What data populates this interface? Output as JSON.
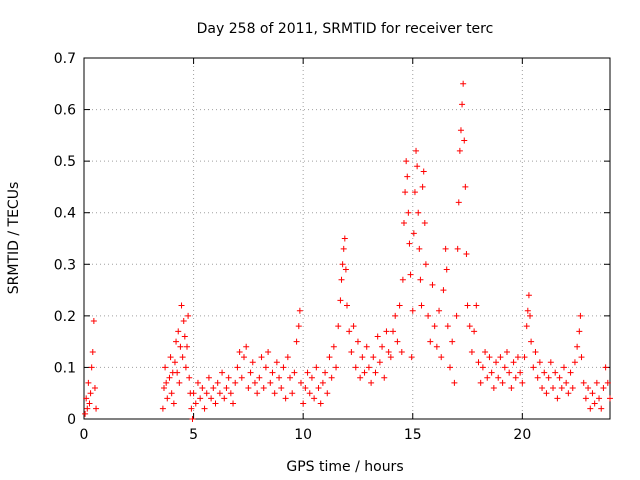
{
  "chart_data": {
    "type": "scatter",
    "title": "Day 258 of 2011, SRMTID for receiver terc",
    "xlabel": "GPS time / hours",
    "ylabel": "SRMTID / TECUs",
    "xlim": [
      0,
      24
    ],
    "ylim": [
      0,
      0.7
    ],
    "x_ticks": [
      0,
      5,
      10,
      15,
      20
    ],
    "x_tick_labels": [
      "0",
      "5",
      "10",
      "15",
      "20"
    ],
    "y_ticks": [
      0,
      0.1,
      0.2,
      0.3,
      0.4,
      0.5,
      0.6,
      0.7
    ],
    "y_tick_labels": [
      "0",
      "0.1",
      "0.2",
      "0.3",
      "0.4",
      "0.5",
      "0.6",
      "0.7"
    ],
    "grid": true,
    "marker": "+",
    "color": "#ff0000",
    "series": [
      {
        "name": "SRMTID",
        "points": [
          [
            0.05,
            0.01
          ],
          [
            0.1,
            0.04
          ],
          [
            0.15,
            0.02
          ],
          [
            0.2,
            0.07
          ],
          [
            0.25,
            0.03
          ],
          [
            0.3,
            0.05
          ],
          [
            0.35,
            0.1
          ],
          [
            0.4,
            0.13
          ],
          [
            0.45,
            0.19
          ],
          [
            0.5,
            0.06
          ],
          [
            0.55,
            0.02
          ],
          [
            3.6,
            0.02
          ],
          [
            3.65,
            0.06
          ],
          [
            3.7,
            0.1
          ],
          [
            3.75,
            0.07
          ],
          [
            3.8,
            0.04
          ],
          [
            3.9,
            0.08
          ],
          [
            3.95,
            0.12
          ],
          [
            4.0,
            0.05
          ],
          [
            4.05,
            0.09
          ],
          [
            4.1,
            0.03
          ],
          [
            4.15,
            0.11
          ],
          [
            4.2,
            0.15
          ],
          [
            4.25,
            0.09
          ],
          [
            4.3,
            0.17
          ],
          [
            4.35,
            0.07
          ],
          [
            4.4,
            0.14
          ],
          [
            4.45,
            0.22
          ],
          [
            4.5,
            0.12
          ],
          [
            4.55,
            0.19
          ],
          [
            4.6,
            0.16
          ],
          [
            4.65,
            0.1
          ],
          [
            4.7,
            0.14
          ],
          [
            4.75,
            0.2
          ],
          [
            4.8,
            0.08
          ],
          [
            4.85,
            0.05
          ],
          [
            4.9,
            0.02
          ],
          [
            4.95,
            0.0
          ],
          [
            5.0,
            0.05
          ],
          [
            5.1,
            0.03
          ],
          [
            5.2,
            0.07
          ],
          [
            5.3,
            0.04
          ],
          [
            5.4,
            0.06
          ],
          [
            5.5,
            0.02
          ],
          [
            5.6,
            0.05
          ],
          [
            5.7,
            0.08
          ],
          [
            5.8,
            0.04
          ],
          [
            5.9,
            0.06
          ],
          [
            6.0,
            0.03
          ],
          [
            6.1,
            0.07
          ],
          [
            6.2,
            0.05
          ],
          [
            6.3,
            0.09
          ],
          [
            6.4,
            0.04
          ],
          [
            6.5,
            0.06
          ],
          [
            6.6,
            0.08
          ],
          [
            6.7,
            0.05
          ],
          [
            6.8,
            0.03
          ],
          [
            6.9,
            0.07
          ],
          [
            7.0,
            0.1
          ],
          [
            7.1,
            0.13
          ],
          [
            7.2,
            0.08
          ],
          [
            7.3,
            0.12
          ],
          [
            7.4,
            0.14
          ],
          [
            7.5,
            0.06
          ],
          [
            7.6,
            0.09
          ],
          [
            7.7,
            0.11
          ],
          [
            7.8,
            0.07
          ],
          [
            7.9,
            0.05
          ],
          [
            8.0,
            0.08
          ],
          [
            8.1,
            0.12
          ],
          [
            8.2,
            0.06
          ],
          [
            8.3,
            0.1
          ],
          [
            8.4,
            0.13
          ],
          [
            8.5,
            0.07
          ],
          [
            8.6,
            0.09
          ],
          [
            8.7,
            0.05
          ],
          [
            8.8,
            0.11
          ],
          [
            8.9,
            0.08
          ],
          [
            9.0,
            0.06
          ],
          [
            9.1,
            0.1
          ],
          [
            9.2,
            0.04
          ],
          [
            9.3,
            0.12
          ],
          [
            9.4,
            0.08
          ],
          [
            9.5,
            0.05
          ],
          [
            9.6,
            0.09
          ],
          [
            9.7,
            0.15
          ],
          [
            9.8,
            0.18
          ],
          [
            9.85,
            0.21
          ],
          [
            9.9,
            0.07
          ],
          [
            10.0,
            0.03
          ],
          [
            10.1,
            0.06
          ],
          [
            10.2,
            0.09
          ],
          [
            10.3,
            0.05
          ],
          [
            10.4,
            0.08
          ],
          [
            10.5,
            0.04
          ],
          [
            10.6,
            0.1
          ],
          [
            10.7,
            0.06
          ],
          [
            10.8,
            0.03
          ],
          [
            10.9,
            0.07
          ],
          [
            11.0,
            0.09
          ],
          [
            11.1,
            0.05
          ],
          [
            11.2,
            0.12
          ],
          [
            11.3,
            0.08
          ],
          [
            11.4,
            0.14
          ],
          [
            11.5,
            0.1
          ],
          [
            11.6,
            0.18
          ],
          [
            11.7,
            0.23
          ],
          [
            11.75,
            0.27
          ],
          [
            11.8,
            0.3
          ],
          [
            11.85,
            0.33
          ],
          [
            11.9,
            0.35
          ],
          [
            11.95,
            0.29
          ],
          [
            12.0,
            0.22
          ],
          [
            12.1,
            0.17
          ],
          [
            12.2,
            0.13
          ],
          [
            12.3,
            0.18
          ],
          [
            12.4,
            0.1
          ],
          [
            12.5,
            0.15
          ],
          [
            12.6,
            0.08
          ],
          [
            12.7,
            0.12
          ],
          [
            12.8,
            0.09
          ],
          [
            12.9,
            0.14
          ],
          [
            13.0,
            0.1
          ],
          [
            13.1,
            0.07
          ],
          [
            13.2,
            0.12
          ],
          [
            13.3,
            0.09
          ],
          [
            13.4,
            0.16
          ],
          [
            13.5,
            0.11
          ],
          [
            13.6,
            0.14
          ],
          [
            13.7,
            0.08
          ],
          [
            13.8,
            0.17
          ],
          [
            13.9,
            0.13
          ],
          [
            14.0,
            0.12
          ],
          [
            14.1,
            0.17
          ],
          [
            14.2,
            0.2
          ],
          [
            14.3,
            0.15
          ],
          [
            14.4,
            0.22
          ],
          [
            14.5,
            0.13
          ],
          [
            14.55,
            0.27
          ],
          [
            14.6,
            0.38
          ],
          [
            14.65,
            0.44
          ],
          [
            14.7,
            0.5
          ],
          [
            14.75,
            0.47
          ],
          [
            14.8,
            0.4
          ],
          [
            14.85,
            0.34
          ],
          [
            14.9,
            0.28
          ],
          [
            14.95,
            0.12
          ],
          [
            15.0,
            0.21
          ],
          [
            15.05,
            0.36
          ],
          [
            15.1,
            0.44
          ],
          [
            15.15,
            0.52
          ],
          [
            15.2,
            0.49
          ],
          [
            15.25,
            0.4
          ],
          [
            15.3,
            0.33
          ],
          [
            15.35,
            0.27
          ],
          [
            15.4,
            0.22
          ],
          [
            15.45,
            0.45
          ],
          [
            15.5,
            0.48
          ],
          [
            15.55,
            0.38
          ],
          [
            15.6,
            0.3
          ],
          [
            15.7,
            0.2
          ],
          [
            15.8,
            0.15
          ],
          [
            15.9,
            0.26
          ],
          [
            16.0,
            0.18
          ],
          [
            16.1,
            0.14
          ],
          [
            16.2,
            0.21
          ],
          [
            16.3,
            0.12
          ],
          [
            16.4,
            0.25
          ],
          [
            16.5,
            0.33
          ],
          [
            16.55,
            0.29
          ],
          [
            16.6,
            0.18
          ],
          [
            16.7,
            0.1
          ],
          [
            16.8,
            0.15
          ],
          [
            16.9,
            0.07
          ],
          [
            17.0,
            0.2
          ],
          [
            17.05,
            0.33
          ],
          [
            17.1,
            0.42
          ],
          [
            17.15,
            0.52
          ],
          [
            17.2,
            0.56
          ],
          [
            17.25,
            0.61
          ],
          [
            17.3,
            0.65
          ],
          [
            17.35,
            0.54
          ],
          [
            17.4,
            0.45
          ],
          [
            17.45,
            0.32
          ],
          [
            17.5,
            0.22
          ],
          [
            17.6,
            0.18
          ],
          [
            17.7,
            0.13
          ],
          [
            17.8,
            0.17
          ],
          [
            17.9,
            0.22
          ],
          [
            18.0,
            0.11
          ],
          [
            18.1,
            0.07
          ],
          [
            18.2,
            0.1
          ],
          [
            18.3,
            0.13
          ],
          [
            18.4,
            0.08
          ],
          [
            18.5,
            0.12
          ],
          [
            18.6,
            0.09
          ],
          [
            18.7,
            0.06
          ],
          [
            18.8,
            0.11
          ],
          [
            18.9,
            0.08
          ],
          [
            19.0,
            0.12
          ],
          [
            19.1,
            0.07
          ],
          [
            19.2,
            0.1
          ],
          [
            19.3,
            0.13
          ],
          [
            19.4,
            0.09
          ],
          [
            19.5,
            0.06
          ],
          [
            19.6,
            0.11
          ],
          [
            19.7,
            0.08
          ],
          [
            19.8,
            0.12
          ],
          [
            19.9,
            0.09
          ],
          [
            20.0,
            0.07
          ],
          [
            20.1,
            0.12
          ],
          [
            20.2,
            0.18
          ],
          [
            20.25,
            0.21
          ],
          [
            20.3,
            0.24
          ],
          [
            20.35,
            0.2
          ],
          [
            20.4,
            0.15
          ],
          [
            20.5,
            0.1
          ],
          [
            20.6,
            0.13
          ],
          [
            20.7,
            0.08
          ],
          [
            20.8,
            0.11
          ],
          [
            20.9,
            0.06
          ],
          [
            21.0,
            0.09
          ],
          [
            21.1,
            0.05
          ],
          [
            21.2,
            0.08
          ],
          [
            21.3,
            0.11
          ],
          [
            21.4,
            0.06
          ],
          [
            21.5,
            0.09
          ],
          [
            21.6,
            0.04
          ],
          [
            21.7,
            0.08
          ],
          [
            21.8,
            0.06
          ],
          [
            21.9,
            0.1
          ],
          [
            22.0,
            0.07
          ],
          [
            22.1,
            0.05
          ],
          [
            22.2,
            0.09
          ],
          [
            22.3,
            0.06
          ],
          [
            22.4,
            0.11
          ],
          [
            22.5,
            0.14
          ],
          [
            22.6,
            0.17
          ],
          [
            22.65,
            0.2
          ],
          [
            22.7,
            0.12
          ],
          [
            22.8,
            0.07
          ],
          [
            22.9,
            0.04
          ],
          [
            23.0,
            0.06
          ],
          [
            23.1,
            0.02
          ],
          [
            23.2,
            0.05
          ],
          [
            23.3,
            0.03
          ],
          [
            23.4,
            0.07
          ],
          [
            23.5,
            0.04
          ],
          [
            23.6,
            0.02
          ],
          [
            23.7,
            0.06
          ],
          [
            23.8,
            0.1
          ],
          [
            23.9,
            0.07
          ],
          [
            24.0,
            0.04
          ]
        ]
      }
    ]
  }
}
